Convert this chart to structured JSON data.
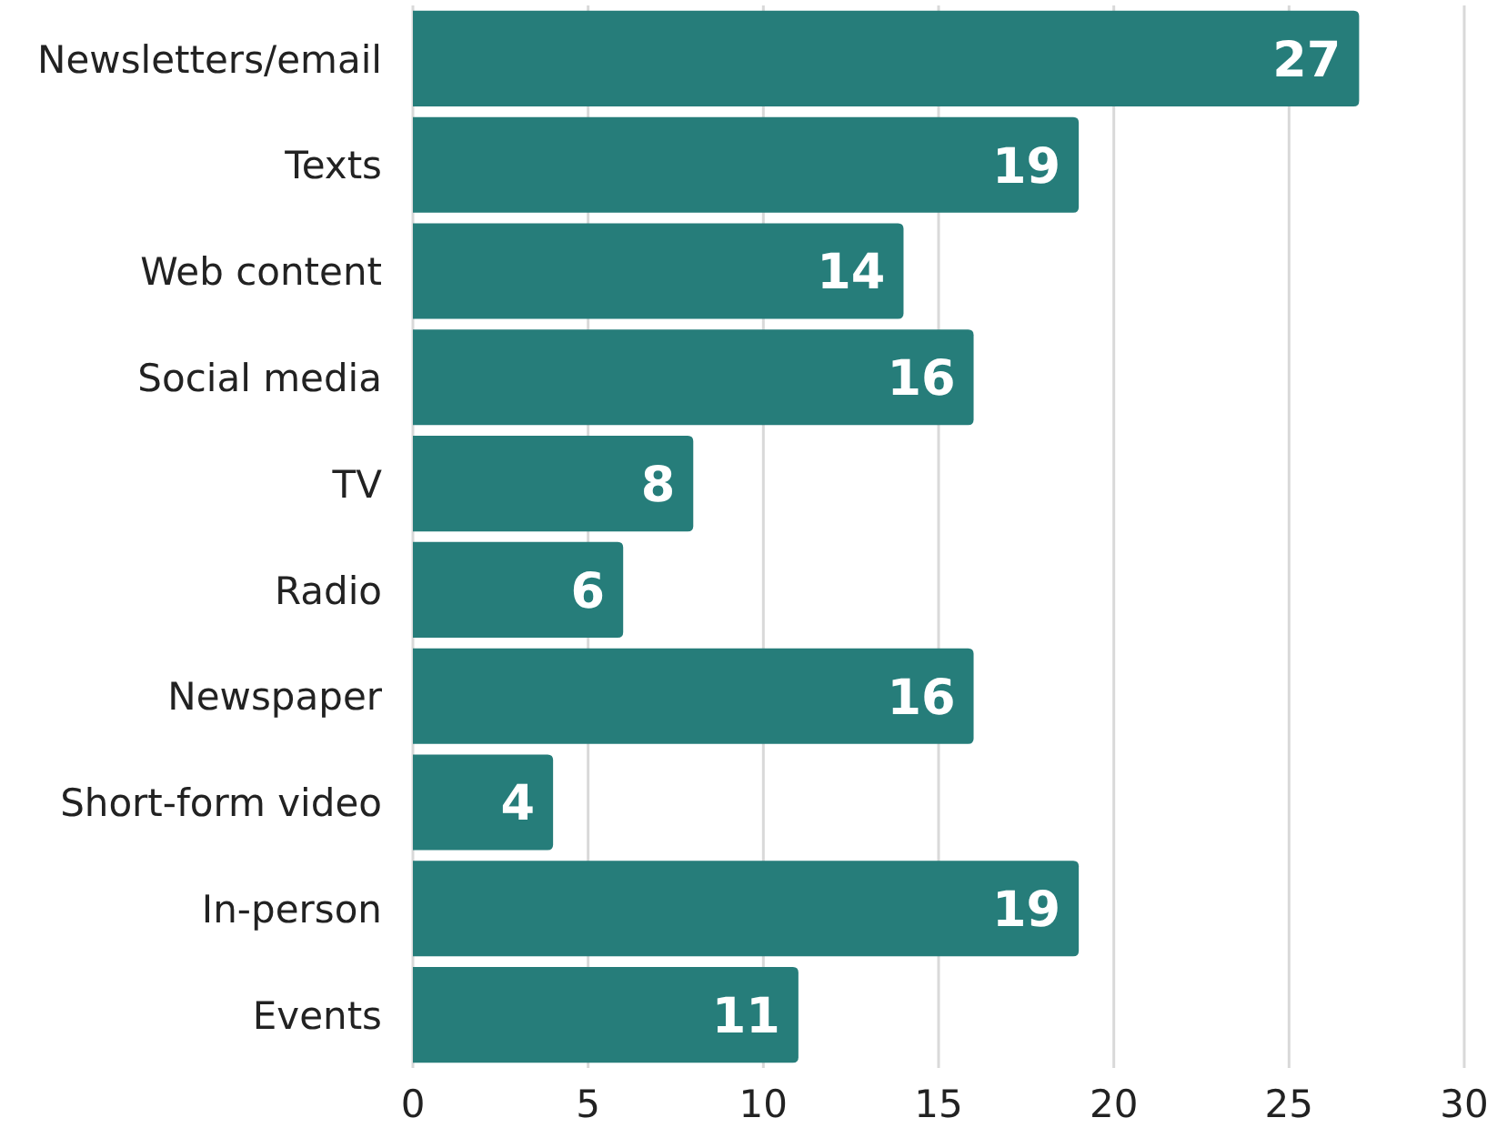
{
  "chart_data": {
    "type": "bar",
    "orientation": "horizontal",
    "categories": [
      "Newsletters/email",
      "Texts",
      "Web content",
      "Social media",
      "TV",
      "Radio",
      "Newspaper",
      "Short-form video",
      "In-person",
      "Events"
    ],
    "values": [
      27,
      19,
      14,
      16,
      8,
      6,
      16,
      4,
      19,
      11
    ],
    "color": "#267d7a",
    "xlim": [
      0,
      30
    ],
    "xticks": [
      0,
      5,
      10,
      15,
      20,
      25,
      30
    ],
    "grid": "x",
    "data_labels": true
  }
}
